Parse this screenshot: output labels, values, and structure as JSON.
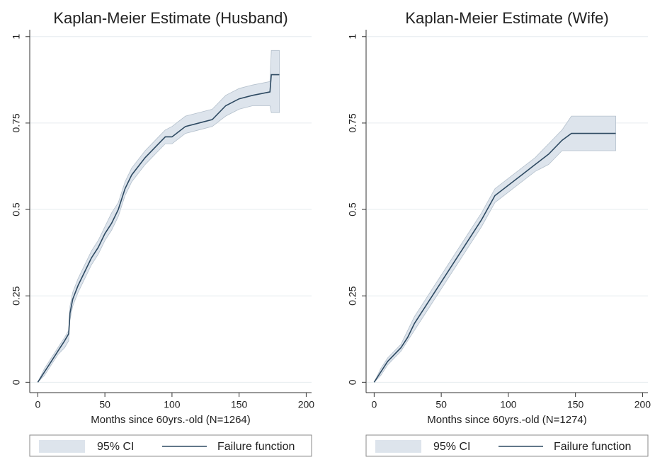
{
  "chart_data": [
    {
      "type": "line",
      "title": "Kaplan-Meier Estimate (Husband)",
      "xlabel": "Months since 60yrs.-old (N=1264)",
      "x": [
        0,
        5,
        10,
        15,
        20,
        23,
        24,
        26,
        30,
        35,
        40,
        45,
        50,
        55,
        60,
        65,
        70,
        80,
        90,
        95,
        100,
        110,
        120,
        130,
        140,
        150,
        160,
        173,
        174,
        180
      ],
      "series": [
        {
          "name": "Failure function",
          "color": "#2e4a62",
          "values": [
            0,
            0.03,
            0.06,
            0.09,
            0.12,
            0.14,
            0.2,
            0.24,
            0.28,
            0.32,
            0.36,
            0.39,
            0.43,
            0.46,
            0.5,
            0.56,
            0.6,
            0.65,
            0.69,
            0.71,
            0.71,
            0.74,
            0.75,
            0.76,
            0.8,
            0.82,
            0.83,
            0.84,
            0.89,
            0.89
          ]
        }
      ],
      "band": {
        "name": "95% CI",
        "color": "#dde4ec",
        "lower": [
          0,
          0.02,
          0.05,
          0.08,
          0.1,
          0.12,
          0.18,
          0.22,
          0.26,
          0.3,
          0.34,
          0.37,
          0.41,
          0.44,
          0.48,
          0.54,
          0.58,
          0.63,
          0.67,
          0.69,
          0.69,
          0.72,
          0.73,
          0.74,
          0.77,
          0.79,
          0.8,
          0.8,
          0.78,
          0.78
        ],
        "upper": [
          0,
          0.04,
          0.07,
          0.1,
          0.13,
          0.15,
          0.22,
          0.26,
          0.3,
          0.34,
          0.38,
          0.41,
          0.45,
          0.49,
          0.52,
          0.58,
          0.62,
          0.67,
          0.71,
          0.73,
          0.74,
          0.77,
          0.78,
          0.79,
          0.83,
          0.85,
          0.86,
          0.87,
          0.96,
          0.96
        ]
      },
      "xlim": [
        -6,
        204
      ],
      "xticks": [
        0,
        50,
        100,
        150,
        200
      ],
      "ylim": [
        -0.03,
        1.02
      ],
      "yticks": [
        0,
        0.25,
        0.5,
        0.75,
        1
      ],
      "grid": true
    },
    {
      "type": "line",
      "title": "Kaplan-Meier Estimate (Wife)",
      "xlabel": "Months since 60yrs.-old (N=1274)",
      "x": [
        0,
        5,
        10,
        20,
        25,
        30,
        40,
        50,
        60,
        70,
        80,
        90,
        100,
        110,
        120,
        130,
        140,
        147,
        180
      ],
      "series": [
        {
          "name": "Failure function",
          "color": "#2e4a62",
          "values": [
            0,
            0.03,
            0.06,
            0.1,
            0.13,
            0.17,
            0.23,
            0.29,
            0.35,
            0.41,
            0.47,
            0.54,
            0.57,
            0.6,
            0.63,
            0.66,
            0.7,
            0.72,
            0.72
          ]
        }
      ],
      "band": {
        "name": "95% CI",
        "color": "#dde4ec",
        "lower": [
          0,
          0.02,
          0.05,
          0.09,
          0.12,
          0.15,
          0.21,
          0.27,
          0.33,
          0.39,
          0.45,
          0.52,
          0.55,
          0.58,
          0.61,
          0.63,
          0.67,
          0.67,
          0.67
        ],
        "upper": [
          0,
          0.04,
          0.07,
          0.11,
          0.15,
          0.19,
          0.25,
          0.31,
          0.37,
          0.43,
          0.49,
          0.56,
          0.59,
          0.62,
          0.65,
          0.69,
          0.73,
          0.77,
          0.77
        ]
      },
      "xlim": [
        -6,
        204
      ],
      "xticks": [
        0,
        50,
        100,
        150,
        200
      ],
      "ylim": [
        -0.03,
        1.02
      ],
      "yticks": [
        0,
        0.25,
        0.5,
        0.75,
        1
      ],
      "grid": true
    }
  ]
}
